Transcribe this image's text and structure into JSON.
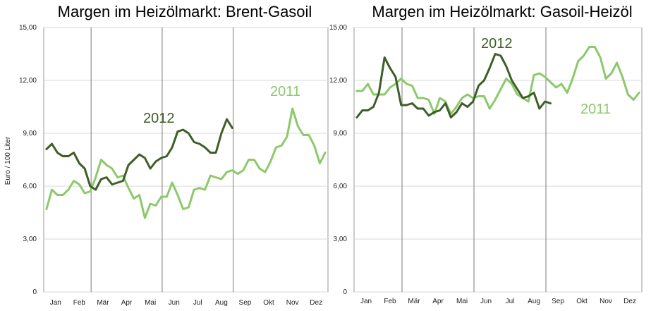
{
  "chart_data": [
    {
      "type": "line",
      "title": "Margen im Heizölmarkt: Brent-Gasoil",
      "ylabel": "Euro / 100 Liter",
      "ylim": [
        0,
        15
      ],
      "yticks": [
        "0",
        "3,00",
        "6,00",
        "9,00",
        "12,00",
        "15,00"
      ],
      "months": [
        "Jan",
        "Feb",
        "Mär",
        "Apr",
        "Mai",
        "Jun",
        "Jul",
        "Aug",
        "Sep",
        "Okt",
        "Nov",
        "Dez"
      ],
      "grid": "horizontal lines and month dividers",
      "series": [
        {
          "name": "2011",
          "color": "#8cc96b",
          "week": [
            1,
            2,
            3,
            4,
            5,
            6,
            7,
            8,
            9,
            10,
            11,
            12,
            13,
            14,
            15,
            16,
            17,
            18,
            19,
            20,
            21,
            22,
            23,
            24,
            25,
            26,
            27,
            28,
            29,
            30,
            31,
            32,
            33,
            34,
            35,
            36,
            37,
            38,
            39,
            40,
            41,
            42,
            43,
            44,
            45,
            46,
            47,
            48,
            49,
            50,
            51,
            52
          ],
          "values": [
            4.7,
            5.8,
            5.5,
            5.5,
            5.8,
            6.3,
            6.1,
            5.6,
            5.7,
            6.5,
            7.5,
            7.2,
            7.0,
            6.5,
            6.6,
            5.9,
            5.3,
            5.5,
            4.2,
            5.0,
            4.9,
            5.4,
            5.4,
            6.2,
            5.5,
            4.7,
            4.8,
            5.8,
            5.9,
            5.8,
            6.6,
            6.5,
            6.4,
            6.8,
            6.9,
            6.7,
            6.9,
            7.5,
            7.5,
            7.0,
            6.8,
            7.4,
            8.2,
            8.3,
            8.8,
            10.4,
            9.4,
            8.9,
            8.9,
            8.3,
            7.3,
            7.9
          ]
        },
        {
          "name": "2012",
          "color": "#3e5e26",
          "week": [
            1,
            2,
            3,
            4,
            5,
            6,
            7,
            8,
            9,
            10,
            11,
            12,
            13,
            14,
            15,
            16,
            17,
            18,
            19,
            20,
            21,
            22,
            23,
            24,
            25,
            26,
            27,
            28,
            29,
            30,
            31,
            32,
            33,
            34,
            35,
            36
          ],
          "values": [
            8.1,
            8.4,
            7.9,
            7.7,
            7.7,
            7.9,
            7.3,
            7.0,
            6.0,
            5.8,
            6.4,
            6.5,
            6.1,
            6.2,
            6.3,
            7.2,
            7.5,
            7.8,
            7.6,
            7.0,
            7.4,
            7.6,
            7.7,
            8.2,
            9.1,
            9.2,
            9.0,
            8.5,
            8.4,
            8.2,
            7.9,
            7.9,
            9.0,
            9.8,
            9.3,
            null
          ]
        }
      ],
      "annotations": [
        {
          "text": "2012",
          "series": "2012"
        },
        {
          "text": "2011",
          "series": "2011"
        }
      ]
    },
    {
      "type": "line",
      "title": "Margen im Heizölmarkt: Gasoil-Heizöl",
      "ylabel": "",
      "ylim": [
        0,
        15
      ],
      "yticks": [
        "0",
        "3,00",
        "6,00",
        "9,00",
        "12,00",
        "15,00"
      ],
      "months": [
        "Jan",
        "Feb",
        "Mär",
        "Apr",
        "Mai",
        "Jun",
        "Jul",
        "Aug",
        "Sep",
        "Okt",
        "Nov",
        "Dez"
      ],
      "grid": "horizontal lines and month dividers",
      "series": [
        {
          "name": "2011",
          "color": "#8cc96b",
          "week": [
            1,
            2,
            3,
            4,
            5,
            6,
            7,
            8,
            9,
            10,
            11,
            12,
            13,
            14,
            15,
            16,
            17,
            18,
            19,
            20,
            21,
            22,
            23,
            24,
            25,
            26,
            27,
            28,
            29,
            30,
            31,
            32,
            33,
            34,
            35,
            36,
            37,
            38,
            39,
            40,
            41,
            42,
            43,
            44,
            45,
            46,
            47,
            48,
            49,
            50,
            51,
            52
          ],
          "values": [
            11.4,
            11.4,
            11.8,
            11.2,
            11.2,
            11.2,
            11.6,
            11.8,
            12.1,
            11.8,
            11.7,
            11.0,
            11.0,
            10.9,
            10.1,
            11.0,
            10.8,
            10.1,
            10.5,
            11.0,
            11.2,
            11.0,
            11.1,
            11.1,
            10.4,
            10.9,
            11.5,
            12.1,
            11.8,
            11.2,
            11.0,
            10.8,
            12.3,
            12.4,
            12.2,
            11.9,
            11.6,
            11.8,
            11.3,
            12.1,
            13.1,
            13.4,
            13.9,
            13.9,
            13.3,
            12.1,
            12.4,
            13.0,
            12.2,
            11.2,
            10.9,
            11.3
          ]
        },
        {
          "name": "2012",
          "color": "#3e5e26",
          "week": [
            1,
            2,
            3,
            4,
            5,
            6,
            7,
            8,
            9,
            10,
            11,
            12,
            13,
            14,
            15,
            16,
            17,
            18,
            19,
            20,
            21,
            22,
            23,
            24,
            25,
            26,
            27,
            28,
            29,
            30,
            31,
            32,
            33,
            34,
            35,
            36
          ],
          "values": [
            9.9,
            10.3,
            10.3,
            10.5,
            11.3,
            13.3,
            12.7,
            12.2,
            10.6,
            10.6,
            10.7,
            10.4,
            10.4,
            10.0,
            10.2,
            10.3,
            10.7,
            9.9,
            10.2,
            10.7,
            10.5,
            10.8,
            11.7,
            12.0,
            12.7,
            13.5,
            13.4,
            12.8,
            12.0,
            11.5,
            11.0,
            11.1,
            11.3,
            10.4,
            10.8,
            10.7
          ]
        }
      ],
      "annotations": [
        {
          "text": "2012",
          "series": "2012"
        },
        {
          "text": "2011",
          "series": "2011"
        }
      ]
    }
  ]
}
